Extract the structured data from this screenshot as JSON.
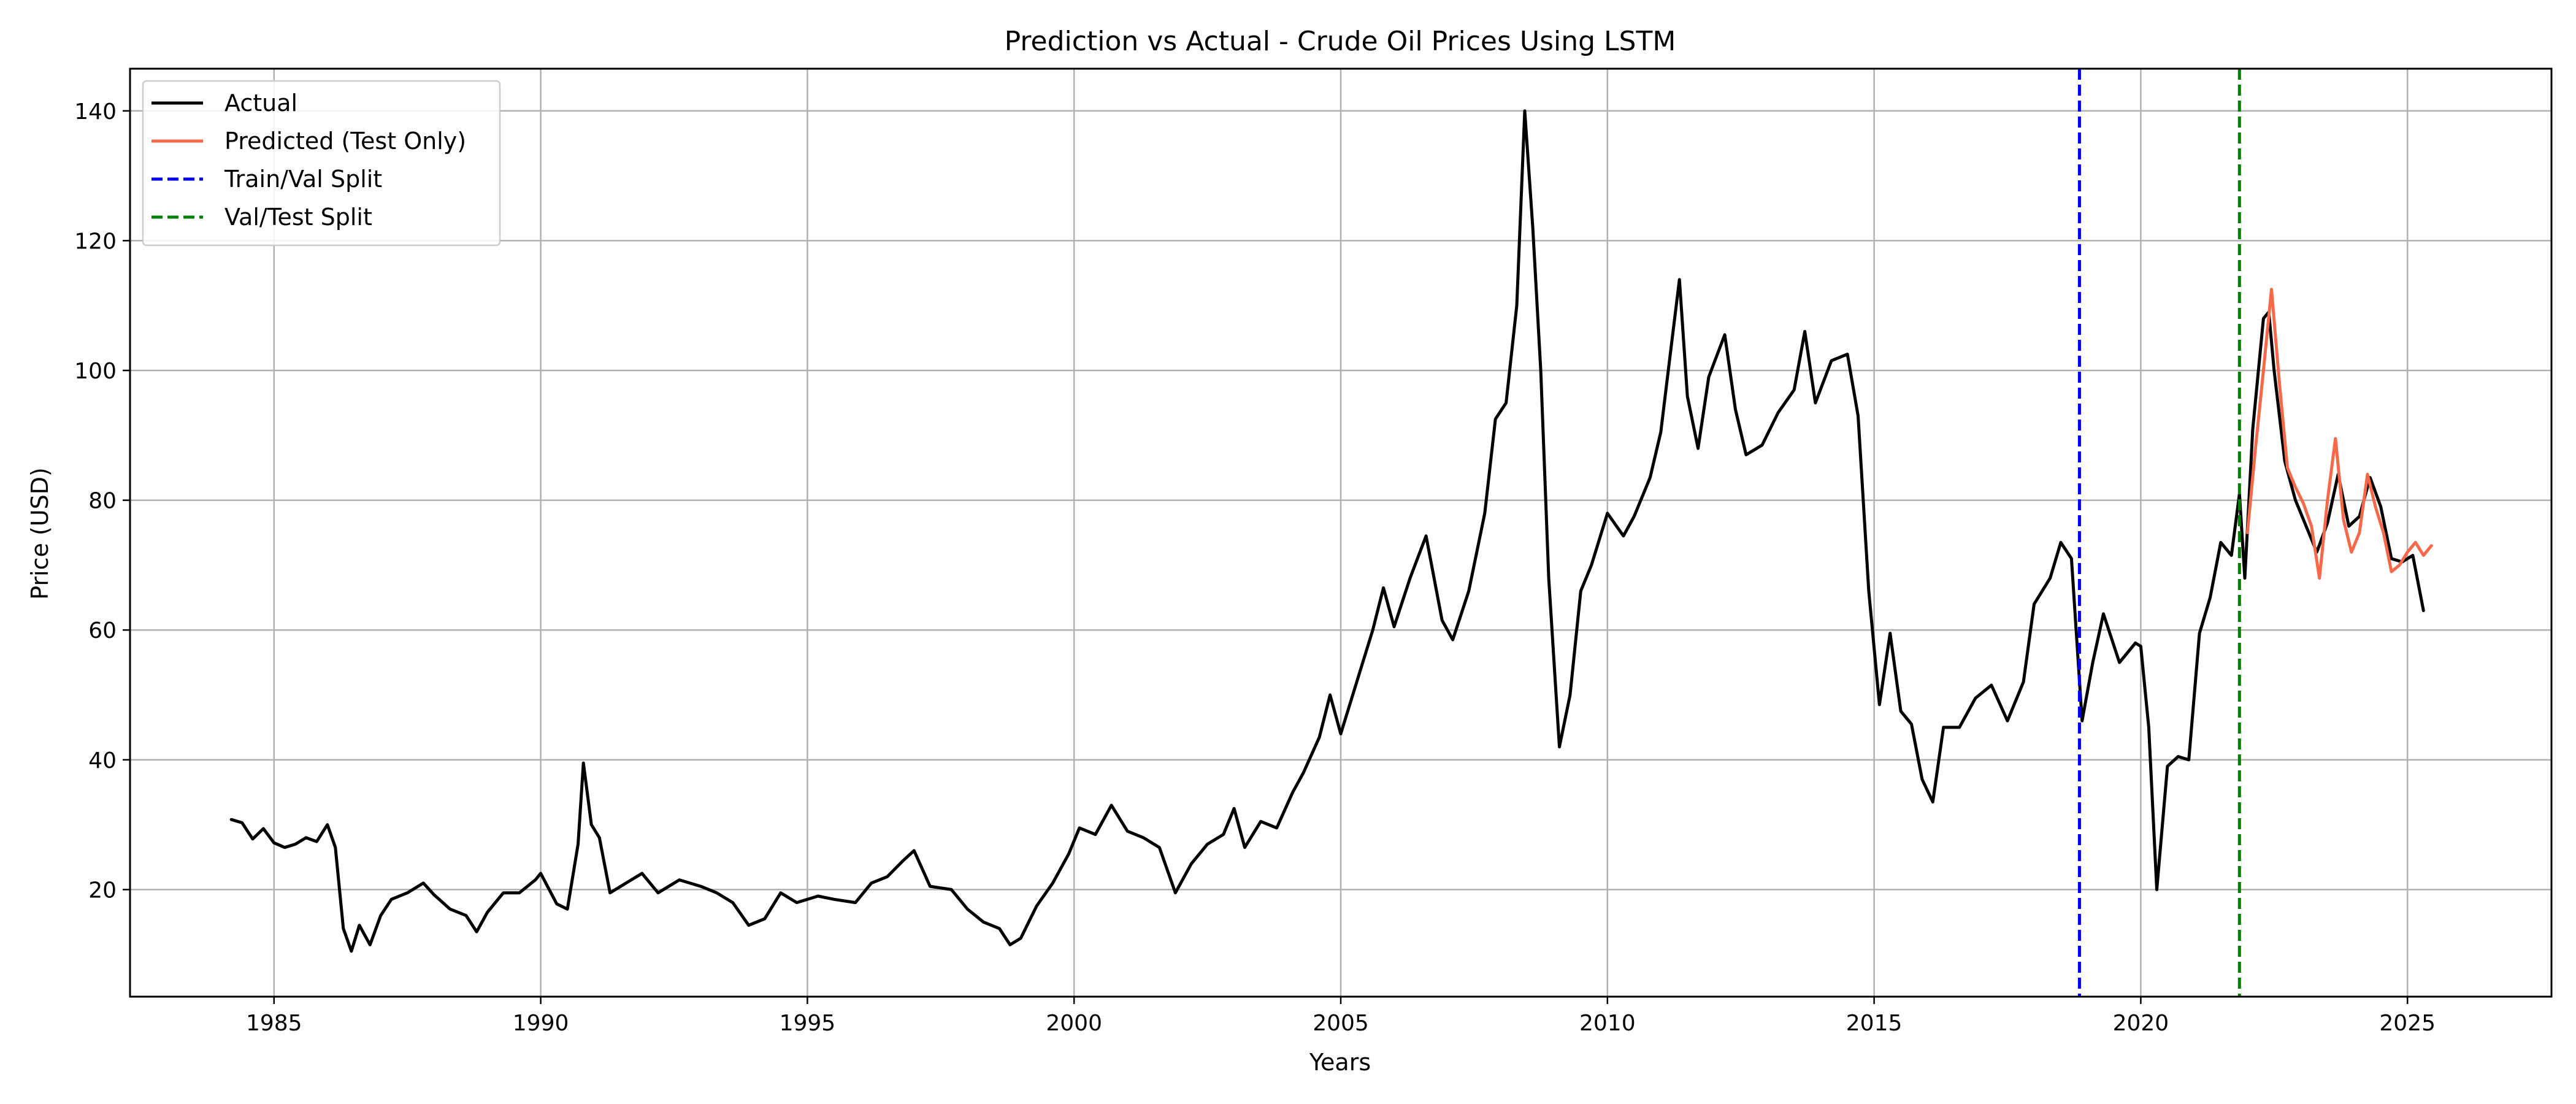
{
  "chart_data": {
    "type": "line",
    "title": "Prediction vs Actual - Crude Oil Prices Using LSTM",
    "xlabel": "Years",
    "ylabel": "Price (USD)",
    "xlim": [
      1982.3,
      2027.7
    ],
    "ylim": [
      3.5,
      146.5
    ],
    "xticks": [
      1985,
      1990,
      1995,
      2000,
      2005,
      2010,
      2015,
      2020,
      2025
    ],
    "yticks": [
      20,
      40,
      60,
      80,
      100,
      120,
      140
    ],
    "grid": true,
    "legend_position": "top-left",
    "series": [
      {
        "name": "Actual",
        "color": "#000000",
        "style": "solid",
        "points": [
          [
            1984.2,
            30.8
          ],
          [
            1984.4,
            30.3
          ],
          [
            1984.6,
            27.8
          ],
          [
            1984.8,
            29.4
          ],
          [
            1985.0,
            27.2
          ],
          [
            1985.2,
            26.5
          ],
          [
            1985.4,
            27.0
          ],
          [
            1985.6,
            28.0
          ],
          [
            1985.8,
            27.4
          ],
          [
            1986.0,
            30.0
          ],
          [
            1986.15,
            26.5
          ],
          [
            1986.3,
            14.0
          ],
          [
            1986.45,
            10.5
          ],
          [
            1986.6,
            14.5
          ],
          [
            1986.8,
            11.5
          ],
          [
            1987.0,
            16.0
          ],
          [
            1987.2,
            18.5
          ],
          [
            1987.5,
            19.5
          ],
          [
            1987.8,
            21.0
          ],
          [
            1988.0,
            19.2
          ],
          [
            1988.3,
            17.0
          ],
          [
            1988.6,
            16.0
          ],
          [
            1988.8,
            13.5
          ],
          [
            1989.0,
            16.5
          ],
          [
            1989.3,
            19.5
          ],
          [
            1989.6,
            19.5
          ],
          [
            1989.9,
            21.5
          ],
          [
            1990.0,
            22.5
          ],
          [
            1990.3,
            17.8
          ],
          [
            1990.5,
            17.0
          ],
          [
            1990.7,
            27.0
          ],
          [
            1990.8,
            39.5
          ],
          [
            1990.95,
            30.0
          ],
          [
            1991.1,
            28.0
          ],
          [
            1991.3,
            19.5
          ],
          [
            1991.6,
            21.0
          ],
          [
            1991.9,
            22.5
          ],
          [
            1992.2,
            19.5
          ],
          [
            1992.6,
            21.5
          ],
          [
            1993.0,
            20.5
          ],
          [
            1993.3,
            19.5
          ],
          [
            1993.6,
            18.0
          ],
          [
            1993.9,
            14.5
          ],
          [
            1994.2,
            15.5
          ],
          [
            1994.5,
            19.5
          ],
          [
            1994.8,
            18.0
          ],
          [
            1995.2,
            19.0
          ],
          [
            1995.5,
            18.5
          ],
          [
            1995.9,
            18.0
          ],
          [
            1996.2,
            21.0
          ],
          [
            1996.5,
            22.0
          ],
          [
            1996.8,
            24.5
          ],
          [
            1997.0,
            26.0
          ],
          [
            1997.3,
            20.5
          ],
          [
            1997.7,
            20.0
          ],
          [
            1998.0,
            17.0
          ],
          [
            1998.3,
            15.0
          ],
          [
            1998.6,
            14.0
          ],
          [
            1998.8,
            11.5
          ],
          [
            1999.0,
            12.5
          ],
          [
            1999.3,
            17.5
          ],
          [
            1999.6,
            21.0
          ],
          [
            1999.9,
            25.5
          ],
          [
            2000.1,
            29.5
          ],
          [
            2000.4,
            28.5
          ],
          [
            2000.7,
            33.0
          ],
          [
            2001.0,
            29.0
          ],
          [
            2001.3,
            28.0
          ],
          [
            2001.6,
            26.5
          ],
          [
            2001.9,
            19.5
          ],
          [
            2002.2,
            24.0
          ],
          [
            2002.5,
            27.0
          ],
          [
            2002.8,
            28.5
          ],
          [
            2003.0,
            32.5
          ],
          [
            2003.2,
            26.5
          ],
          [
            2003.5,
            30.5
          ],
          [
            2003.8,
            29.5
          ],
          [
            2004.1,
            35.0
          ],
          [
            2004.3,
            38.0
          ],
          [
            2004.6,
            43.5
          ],
          [
            2004.8,
            50.0
          ],
          [
            2005.0,
            44.0
          ],
          [
            2005.3,
            52.0
          ],
          [
            2005.6,
            60.0
          ],
          [
            2005.8,
            66.5
          ],
          [
            2006.0,
            60.5
          ],
          [
            2006.3,
            68.0
          ],
          [
            2006.6,
            74.5
          ],
          [
            2006.9,
            61.5
          ],
          [
            2007.1,
            58.5
          ],
          [
            2007.4,
            66.0
          ],
          [
            2007.7,
            78.0
          ],
          [
            2007.9,
            92.5
          ],
          [
            2008.1,
            95.0
          ],
          [
            2008.3,
            110.0
          ],
          [
            2008.45,
            140.0
          ],
          [
            2008.6,
            122.0
          ],
          [
            2008.75,
            100.0
          ],
          [
            2008.9,
            68.0
          ],
          [
            2009.1,
            42.0
          ],
          [
            2009.3,
            50.0
          ],
          [
            2009.5,
            66.0
          ],
          [
            2009.7,
            70.0
          ],
          [
            2010.0,
            78.0
          ],
          [
            2010.3,
            74.5
          ],
          [
            2010.5,
            77.5
          ],
          [
            2010.8,
            83.5
          ],
          [
            2011.0,
            90.5
          ],
          [
            2011.2,
            104.0
          ],
          [
            2011.35,
            114.0
          ],
          [
            2011.5,
            96.0
          ],
          [
            2011.7,
            88.0
          ],
          [
            2011.9,
            99.0
          ],
          [
            2012.2,
            105.5
          ],
          [
            2012.4,
            94.0
          ],
          [
            2012.6,
            87.0
          ],
          [
            2012.9,
            88.5
          ],
          [
            2013.2,
            93.5
          ],
          [
            2013.5,
            97.0
          ],
          [
            2013.7,
            106.0
          ],
          [
            2013.9,
            95.0
          ],
          [
            2014.2,
            101.5
          ],
          [
            2014.5,
            102.5
          ],
          [
            2014.7,
            93.0
          ],
          [
            2014.9,
            66.0
          ],
          [
            2015.1,
            48.5
          ],
          [
            2015.3,
            59.5
          ],
          [
            2015.5,
            47.5
          ],
          [
            2015.7,
            45.5
          ],
          [
            2015.9,
            37.0
          ],
          [
            2016.1,
            33.5
          ],
          [
            2016.3,
            45.0
          ],
          [
            2016.6,
            45.0
          ],
          [
            2016.9,
            49.5
          ],
          [
            2017.2,
            51.5
          ],
          [
            2017.5,
            46.0
          ],
          [
            2017.8,
            52.0
          ],
          [
            2018.0,
            64.0
          ],
          [
            2018.3,
            68.0
          ],
          [
            2018.5,
            73.5
          ],
          [
            2018.7,
            71.0
          ],
          [
            2018.9,
            46.0
          ],
          [
            2019.1,
            55.0
          ],
          [
            2019.3,
            62.5
          ],
          [
            2019.6,
            55.0
          ],
          [
            2019.9,
            58.0
          ],
          [
            2020.0,
            57.5
          ],
          [
            2020.15,
            45.0
          ],
          [
            2020.3,
            20.0
          ],
          [
            2020.5,
            39.0
          ],
          [
            2020.7,
            40.5
          ],
          [
            2020.9,
            40.0
          ],
          [
            2021.1,
            59.5
          ],
          [
            2021.3,
            65.0
          ],
          [
            2021.5,
            73.5
          ],
          [
            2021.7,
            71.5
          ],
          [
            2021.85,
            81.0
          ],
          [
            2021.95,
            68.0
          ],
          [
            2022.1,
            91.0
          ],
          [
            2022.3,
            108.0
          ],
          [
            2022.4,
            109.0
          ],
          [
            2022.5,
            100.0
          ],
          [
            2022.7,
            86.0
          ],
          [
            2022.9,
            80.0
          ],
          [
            2023.1,
            76.0
          ],
          [
            2023.3,
            72.0
          ],
          [
            2023.5,
            76.5
          ],
          [
            2023.7,
            84.0
          ],
          [
            2023.9,
            76.0
          ],
          [
            2024.1,
            77.5
          ],
          [
            2024.3,
            83.5
          ],
          [
            2024.5,
            79.0
          ],
          [
            2024.7,
            71.0
          ],
          [
            2024.9,
            70.5
          ],
          [
            2025.1,
            71.5
          ],
          [
            2025.3,
            63.0
          ]
        ]
      },
      {
        "name": "Predicted (Test Only)",
        "color": "#f4694a",
        "style": "solid",
        "points": [
          [
            2022.0,
            75.0
          ],
          [
            2022.15,
            88.0
          ],
          [
            2022.3,
            100.0
          ],
          [
            2022.45,
            112.5
          ],
          [
            2022.6,
            98.0
          ],
          [
            2022.75,
            85.0
          ],
          [
            2022.9,
            82.0
          ],
          [
            2023.05,
            79.5
          ],
          [
            2023.2,
            76.0
          ],
          [
            2023.35,
            68.0
          ],
          [
            2023.5,
            80.0
          ],
          [
            2023.65,
            89.5
          ],
          [
            2023.8,
            77.0
          ],
          [
            2023.95,
            72.0
          ],
          [
            2024.1,
            75.0
          ],
          [
            2024.25,
            84.0
          ],
          [
            2024.4,
            79.0
          ],
          [
            2024.55,
            75.0
          ],
          [
            2024.7,
            69.0
          ],
          [
            2024.85,
            70.0
          ],
          [
            2025.0,
            72.0
          ],
          [
            2025.15,
            73.5
          ],
          [
            2025.3,
            71.5
          ],
          [
            2025.45,
            73.0
          ]
        ]
      },
      {
        "name": "Train/Val Split",
        "color": "#0000ee",
        "style": "dashed",
        "x": 2018.85
      },
      {
        "name": "Val/Test Split",
        "color": "#008000",
        "style": "dashed",
        "x": 2021.85
      }
    ]
  }
}
